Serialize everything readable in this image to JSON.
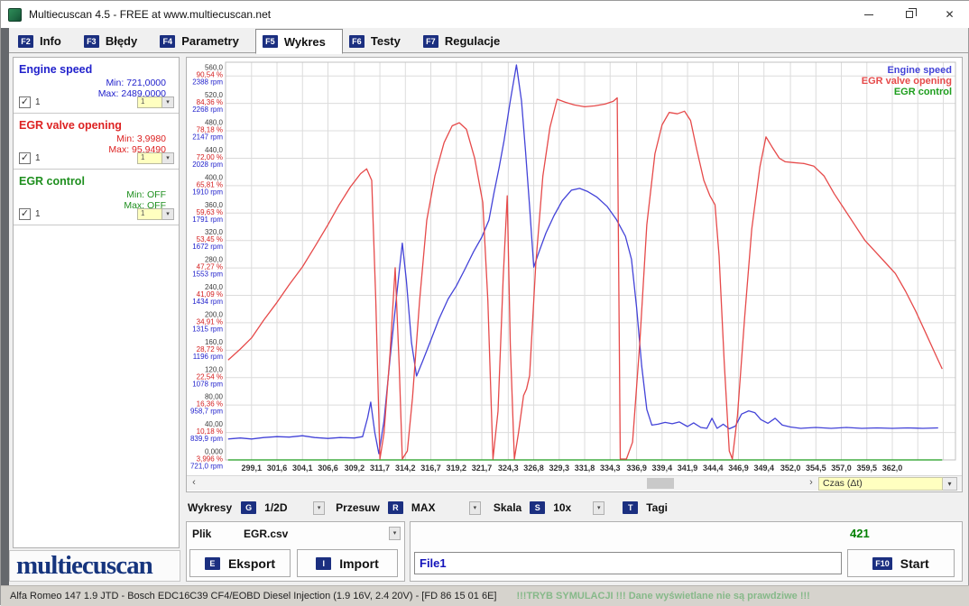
{
  "window": {
    "title": "Multiecuscan 4.5 - FREE at www.multiecuscan.net"
  },
  "icons": {
    "dropdown": "▾",
    "scroll_left": "‹",
    "scroll_right": "›",
    "close": "✕",
    "check": "✓"
  },
  "tabs": [
    {
      "key": "F2",
      "label": "Info",
      "active": false
    },
    {
      "key": "F3",
      "label": "Błędy",
      "active": false
    },
    {
      "key": "F4",
      "label": "Parametry",
      "active": false
    },
    {
      "key": "F5",
      "label": "Wykres",
      "active": true
    },
    {
      "key": "F6",
      "label": "Testy",
      "active": false
    },
    {
      "key": "F7",
      "label": "Regulacje",
      "active": false
    }
  ],
  "sidebar": {
    "logo": "multiecuscan",
    "channels": [
      {
        "name": "Engine speed",
        "color": "#2222cc",
        "min": "Min: 721,0000",
        "max": "Max: 2489,0000",
        "checkbox_label": "1",
        "combo_value": "1"
      },
      {
        "name": "EGR valve opening",
        "color": "#dd2222",
        "min": "Min: 3,9980",
        "max": "Max: 95,9490",
        "checkbox_label": "1",
        "combo_value": "1"
      },
      {
        "name": "EGR control",
        "color": "#1f8f1f",
        "min": "Min: OFF",
        "max": "Max: OFF",
        "checkbox_label": "1",
        "combo_value": "1"
      }
    ]
  },
  "chart": {
    "x_axis_combo": "Czas (Δt)",
    "y_ticks": [
      {
        "unit": "560,0",
        "pct": "90,54 %",
        "rpm": "2388 rpm"
      },
      {
        "unit": "520,0",
        "pct": "84,36 %",
        "rpm": "2268 rpm"
      },
      {
        "unit": "480,0",
        "pct": "78,18 %",
        "rpm": "2147 rpm"
      },
      {
        "unit": "440,0",
        "pct": "72,00 %",
        "rpm": "2028 rpm"
      },
      {
        "unit": "400,0",
        "pct": "65,81 %",
        "rpm": "1910 rpm"
      },
      {
        "unit": "360,0",
        "pct": "59,63 %",
        "rpm": "1791 rpm"
      },
      {
        "unit": "320,0",
        "pct": "53,45 %",
        "rpm": "1672 rpm"
      },
      {
        "unit": "280,0",
        "pct": "47,27 %",
        "rpm": "1553 rpm"
      },
      {
        "unit": "240,0",
        "pct": "41,09 %",
        "rpm": "1434 rpm"
      },
      {
        "unit": "200,0",
        "pct": "34,91 %",
        "rpm": "1315 rpm"
      },
      {
        "unit": "160,0",
        "pct": "28,72 %",
        "rpm": "1196 rpm"
      },
      {
        "unit": "120,0",
        "pct": "22,54 %",
        "rpm": "1078 rpm"
      },
      {
        "unit": "80,00",
        "pct": "16,36 %",
        "rpm": "958,7 rpm"
      },
      {
        "unit": "40,00",
        "pct": "10,18 %",
        "rpm": "839,9 rpm"
      },
      {
        "unit": "0,000",
        "pct": "3,996 %",
        "rpm": "721,0 rpm"
      }
    ],
    "x_ticks": [
      "299,1",
      "301,6",
      "304,1",
      "306,6",
      "309,2",
      "311,7",
      "314,2",
      "316,7",
      "319,2",
      "321,7",
      "324,3",
      "326,8",
      "329,3",
      "331,8",
      "334,3",
      "336,9",
      "339,4",
      "341,9",
      "344,4",
      "346,9",
      "349,4",
      "352,0",
      "354,5",
      "357,0",
      "359,5",
      "362,0"
    ],
    "x_grid_extra": [
      364.5,
      367.0
    ],
    "label_colors": {
      "unit": "#3c3c3c",
      "pct": "#d42020",
      "rpm": "#2222cc",
      "x": "#333333"
    }
  },
  "chart_data": {
    "type": "line",
    "title": "",
    "xlabel": "Czas (Δt)",
    "x_range": [
      296.55,
      368.2
    ],
    "unit_axis": {
      "min": 0,
      "max": 580,
      "grid_step": 40,
      "labeled_max": 560
    },
    "scales": {
      "rpm_min": 721.0,
      "rpm_per_unit40": 119.07,
      "pct_min": 3.996,
      "pct_per_unit40": 6.1817
    },
    "grid": true,
    "legend_position": "top-right",
    "series": [
      {
        "name": "Engine speed",
        "unit": "rpm",
        "color": "#4343d8",
        "points": [
          [
            296.8,
            812
          ],
          [
            298,
            816
          ],
          [
            299.1,
            812
          ],
          [
            300.3,
            818
          ],
          [
            301.6,
            822
          ],
          [
            302.8,
            820
          ],
          [
            304.1,
            826
          ],
          [
            305.3,
            818
          ],
          [
            306.6,
            814
          ],
          [
            307.8,
            818
          ],
          [
            309.2,
            816
          ],
          [
            310,
            822
          ],
          [
            310.5,
            905
          ],
          [
            310.8,
            972
          ],
          [
            311.2,
            840
          ],
          [
            311.6,
            748
          ],
          [
            312.1,
            890
          ],
          [
            312.7,
            1160
          ],
          [
            313.4,
            1460
          ],
          [
            313.9,
            1662
          ],
          [
            314.3,
            1500
          ],
          [
            314.8,
            1230
          ],
          [
            315.3,
            1085
          ],
          [
            315.9,
            1150
          ],
          [
            316.7,
            1240
          ],
          [
            317.5,
            1332
          ],
          [
            318.4,
            1420
          ],
          [
            319.2,
            1476
          ],
          [
            320,
            1545
          ],
          [
            320.9,
            1625
          ],
          [
            321.7,
            1688
          ],
          [
            322.4,
            1762
          ],
          [
            322.9,
            1880
          ],
          [
            323.4,
            1990
          ],
          [
            323.9,
            2110
          ],
          [
            324.5,
            2280
          ],
          [
            325.1,
            2489
          ],
          [
            325.6,
            2280
          ],
          [
            326,
            2060
          ],
          [
            326.4,
            1820
          ],
          [
            326.8,
            1558
          ],
          [
            327.3,
            1622
          ],
          [
            328,
            1706
          ],
          [
            328.8,
            1782
          ],
          [
            329.6,
            1846
          ],
          [
            330.5,
            1892
          ],
          [
            331.3,
            1900
          ],
          [
            332.1,
            1886
          ],
          [
            333,
            1862
          ],
          [
            334,
            1822
          ],
          [
            334.9,
            1766
          ],
          [
            335.8,
            1692
          ],
          [
            336.4,
            1592
          ],
          [
            336.9,
            1382
          ],
          [
            337.4,
            1130
          ],
          [
            337.9,
            940
          ],
          [
            338.4,
            872
          ],
          [
            339,
            876
          ],
          [
            339.7,
            884
          ],
          [
            340.4,
            878
          ],
          [
            341.1,
            886
          ],
          [
            341.9,
            866
          ],
          [
            342.5,
            882
          ],
          [
            343.2,
            862
          ],
          [
            343.8,
            858
          ],
          [
            344.3,
            902
          ],
          [
            344.8,
            858
          ],
          [
            345.4,
            876
          ],
          [
            346,
            856
          ],
          [
            346.6,
            868
          ],
          [
            347.2,
            920
          ],
          [
            347.9,
            934
          ],
          [
            348.5,
            926
          ],
          [
            349.1,
            896
          ],
          [
            349.8,
            880
          ],
          [
            350.5,
            902
          ],
          [
            351.2,
            872
          ],
          [
            352,
            864
          ],
          [
            353,
            858
          ],
          [
            354.5,
            862
          ],
          [
            356,
            858
          ],
          [
            357.5,
            862
          ],
          [
            359,
            858
          ],
          [
            360.5,
            860
          ],
          [
            362,
            858
          ],
          [
            363.5,
            860
          ],
          [
            365,
            858
          ],
          [
            366.5,
            860
          ]
        ]
      },
      {
        "name": "EGR valve opening",
        "unit": "%",
        "color": "#e64a4a",
        "points": [
          [
            296.8,
            26.5
          ],
          [
            298,
            29
          ],
          [
            299.1,
            31.5
          ],
          [
            300.3,
            35.5
          ],
          [
            301.6,
            39.5
          ],
          [
            302.8,
            43.5
          ],
          [
            304.1,
            47.5
          ],
          [
            305.3,
            52
          ],
          [
            306.6,
            57
          ],
          [
            307.7,
            61.5
          ],
          [
            308.8,
            65.5
          ],
          [
            309.8,
            68.5
          ],
          [
            310.4,
            69.6
          ],
          [
            310.9,
            67
          ],
          [
            311.3,
            40
          ],
          [
            311.7,
            4.2
          ],
          [
            312.1,
            10
          ],
          [
            312.7,
            28
          ],
          [
            313.2,
            47.3
          ],
          [
            313.6,
            25
          ],
          [
            313.9,
            4.2
          ],
          [
            314.4,
            6
          ],
          [
            314.9,
            18
          ],
          [
            315.6,
            40
          ],
          [
            316.3,
            58
          ],
          [
            317.1,
            68
          ],
          [
            318,
            75.5
          ],
          [
            318.8,
            79.3
          ],
          [
            319.5,
            80
          ],
          [
            320.2,
            78.5
          ],
          [
            321,
            72
          ],
          [
            321.8,
            62
          ],
          [
            322.3,
            40
          ],
          [
            322.8,
            4.2
          ],
          [
            323.3,
            15
          ],
          [
            323.8,
            45
          ],
          [
            324.2,
            63.5
          ],
          [
            324.5,
            30
          ],
          [
            324.9,
            4.2
          ],
          [
            325.3,
            10
          ],
          [
            325.8,
            18.5
          ],
          [
            326.1,
            20
          ],
          [
            326.4,
            23
          ],
          [
            327,
            48
          ],
          [
            327.7,
            68
          ],
          [
            328.4,
            79
          ],
          [
            329.1,
            85.3
          ],
          [
            329.9,
            84.6
          ],
          [
            330.8,
            84
          ],
          [
            331.8,
            83.6
          ],
          [
            332.8,
            83.8
          ],
          [
            333.8,
            84.2
          ],
          [
            334.6,
            84.8
          ],
          [
            335,
            85.6
          ],
          [
            335.3,
            4.2
          ],
          [
            335.9,
            4.2
          ],
          [
            336.5,
            8
          ],
          [
            337.2,
            30
          ],
          [
            337.9,
            57
          ],
          [
            338.7,
            73
          ],
          [
            339.4,
            79.5
          ],
          [
            340.1,
            82.3
          ],
          [
            340.9,
            82
          ],
          [
            341.6,
            82.6
          ],
          [
            342.2,
            80.5
          ],
          [
            342.8,
            74
          ],
          [
            343.5,
            67
          ],
          [
            344.1,
            63.5
          ],
          [
            344.6,
            61.5
          ],
          [
            345,
            50
          ],
          [
            345.5,
            26
          ],
          [
            346,
            6
          ],
          [
            346.3,
            4.2
          ],
          [
            346.8,
            14
          ],
          [
            347.5,
            36
          ],
          [
            348.2,
            56
          ],
          [
            349,
            70
          ],
          [
            349.6,
            76.8
          ],
          [
            350.2,
            74.5
          ],
          [
            350.9,
            72
          ],
          [
            351.5,
            71.2
          ],
          [
            352.3,
            71
          ],
          [
            353.3,
            70.8
          ],
          [
            354.3,
            70.2
          ],
          [
            355.3,
            68
          ],
          [
            356.3,
            64
          ],
          [
            357.3,
            60.5
          ],
          [
            358.3,
            57
          ],
          [
            359.3,
            53.5
          ],
          [
            360.3,
            51
          ],
          [
            361.3,
            48.5
          ],
          [
            362.3,
            46
          ],
          [
            363.3,
            42
          ],
          [
            364.3,
            37.5
          ],
          [
            365.3,
            32.5
          ],
          [
            366.3,
            27.5
          ],
          [
            366.9,
            24.5
          ]
        ]
      },
      {
        "name": "EGR control",
        "unit": "state",
        "color": "#1e9e1e",
        "state_label": "OFF",
        "points": [
          [
            296.8,
            0
          ],
          [
            366.9,
            0
          ]
        ]
      }
    ]
  },
  "toolbar": {
    "wykresy_label": "Wykresy",
    "g_key": "G",
    "wykresy_value": "1/2D",
    "przesuw_label": "Przesuw",
    "r_key": "R",
    "przesuw_value": "MAX",
    "skala_label": "Skala",
    "s_key": "S",
    "skala_value": "10x",
    "t_key": "T",
    "tagi_label": "Tagi"
  },
  "file_panel": {
    "plik_label": "Plik",
    "file_value": "EGR.csv",
    "eksport": {
      "key": "E",
      "label": "Eksport"
    },
    "import": {
      "key": "I",
      "label": "Import"
    }
  },
  "record_panel": {
    "count": "421",
    "file_value": "File1",
    "start": {
      "key": "F10",
      "label": "Start"
    }
  },
  "status_bar": {
    "vehicle": "Alfa Romeo 147 1.9 JTD - Bosch EDC16C39 CF4/EOBD Diesel Injection (1.9 16V, 2.4 20V) - [FD 86 15 01 6E]",
    "simulation": "!!!TRYB SYMULACJI !!! Dane wyświetlane nie są prawdziwe !!!"
  }
}
